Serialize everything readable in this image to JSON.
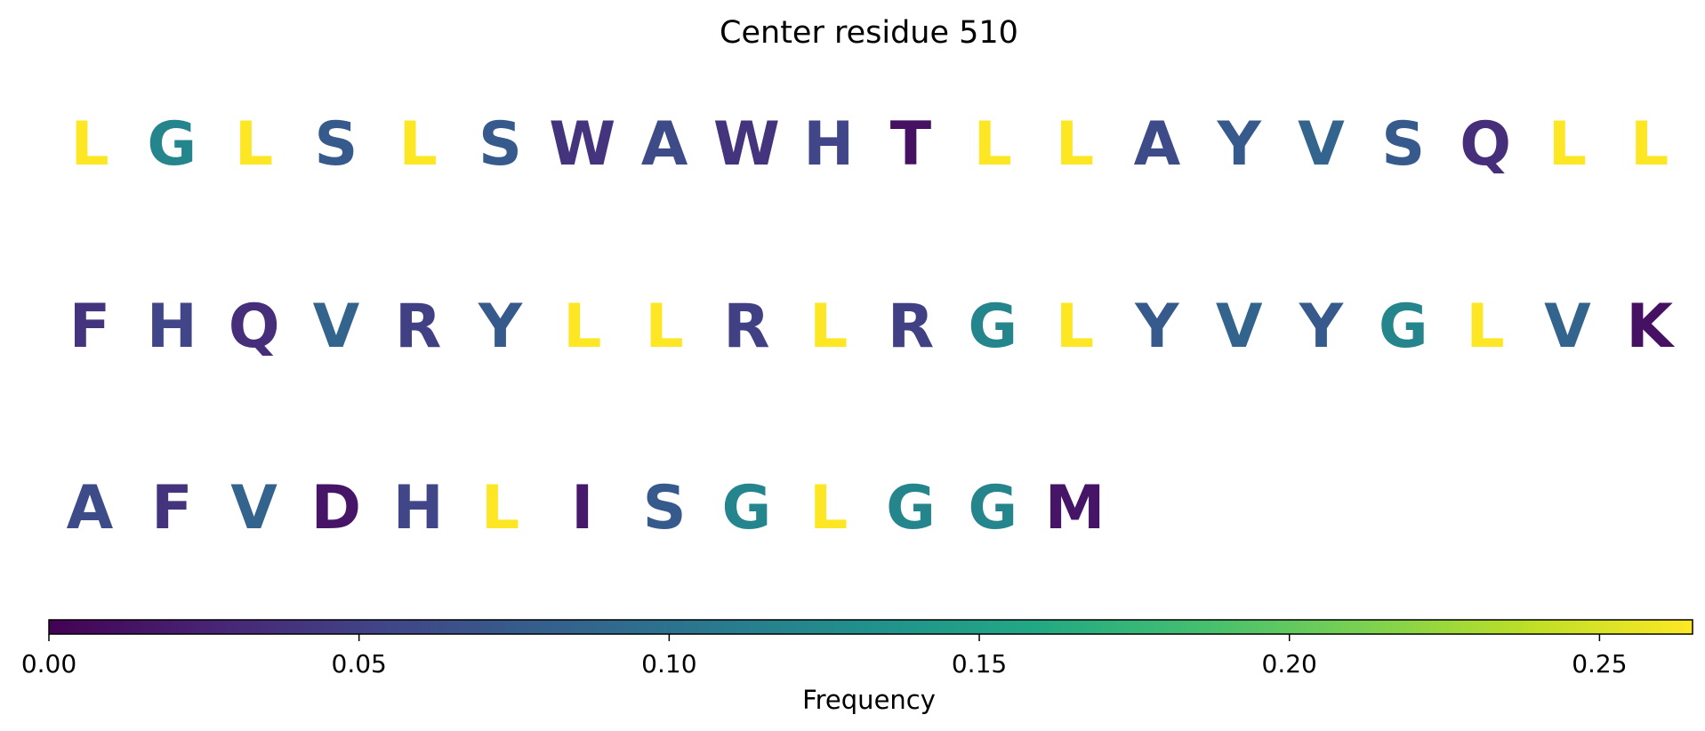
{
  "chart_data": {
    "type": "sequence-logo",
    "title": "Center residue 510",
    "colormap": "viridis",
    "rows": [
      {
        "letters": [
          "L",
          "G",
          "L",
          "S",
          "L",
          "S",
          "W",
          "A",
          "W",
          "H",
          "T",
          "L",
          "L",
          "A",
          "Y",
          "V",
          "S",
          "Q",
          "L",
          "L"
        ],
        "frequencies": [
          0.265,
          0.12,
          0.265,
          0.075,
          0.265,
          0.075,
          0.04,
          0.06,
          0.04,
          0.055,
          0.012,
          0.265,
          0.265,
          0.06,
          0.075,
          0.085,
          0.075,
          0.035,
          0.265,
          0.265
        ]
      },
      {
        "letters": [
          "F",
          "H",
          "Q",
          "V",
          "R",
          "Y",
          "L",
          "L",
          "R",
          "L",
          "R",
          "G",
          "L",
          "Y",
          "V",
          "Y",
          "G",
          "L",
          "V",
          "K"
        ],
        "frequencies": [
          0.04,
          0.055,
          0.035,
          0.085,
          0.05,
          0.075,
          0.265,
          0.265,
          0.05,
          0.265,
          0.05,
          0.12,
          0.265,
          0.075,
          0.085,
          0.075,
          0.12,
          0.265,
          0.085,
          0.012
        ]
      },
      {
        "letters": [
          "A",
          "F",
          "V",
          "D",
          "H",
          "L",
          "I",
          "S",
          "G",
          "L",
          "G",
          "G",
          "M"
        ],
        "frequencies": [
          0.06,
          0.04,
          0.085,
          0.015,
          0.055,
          0.265,
          0.018,
          0.075,
          0.12,
          0.265,
          0.12,
          0.12,
          0.015
        ]
      }
    ],
    "colorbar": {
      "label": "Frequency",
      "range": [
        0,
        0.265
      ],
      "ticks": [
        0.0,
        0.05,
        0.1,
        0.15,
        0.2,
        0.25
      ],
      "tick_labels": [
        "0.00",
        "0.05",
        "0.10",
        "0.15",
        "0.20",
        "0.25"
      ],
      "orientation": "horizontal",
      "placement": "bottom"
    }
  }
}
